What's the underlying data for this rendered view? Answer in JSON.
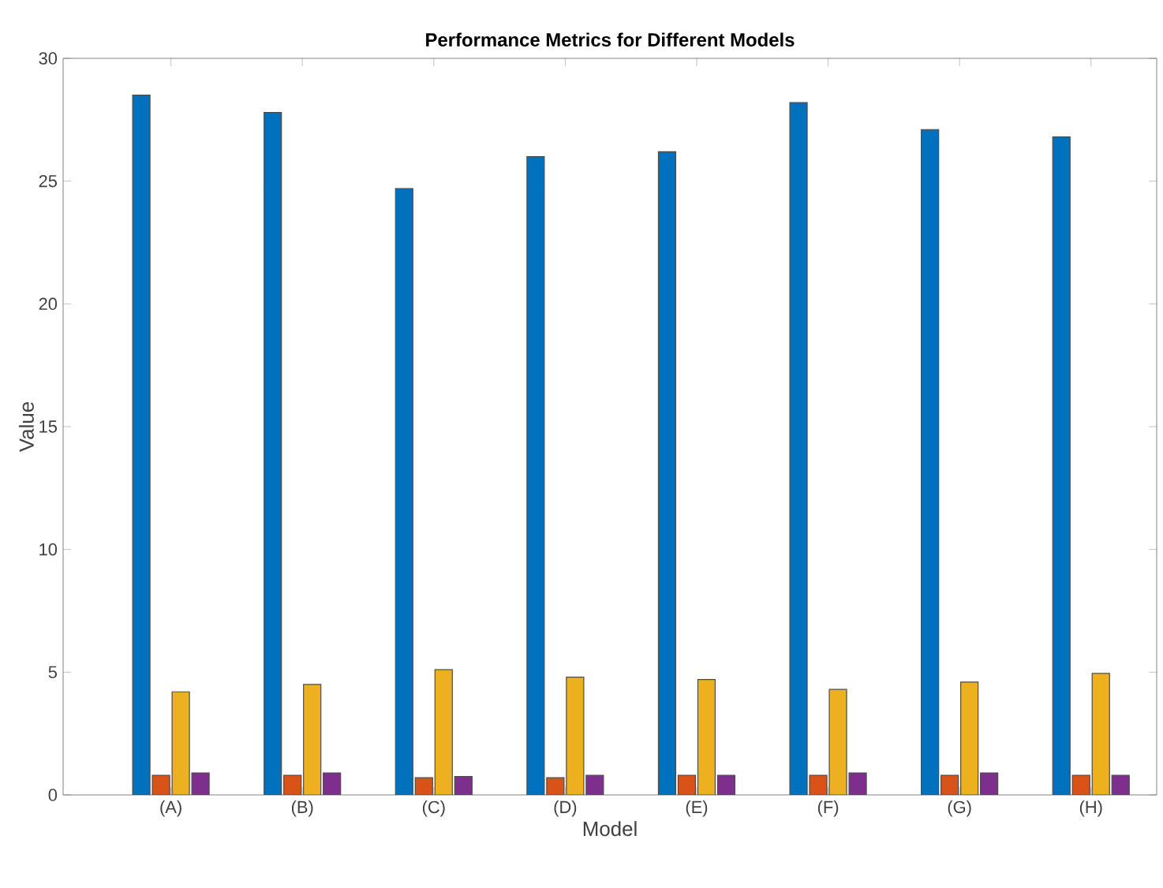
{
  "chart_data": {
    "type": "bar",
    "title": "Performance Metrics for Different Models",
    "xlabel": "Model",
    "ylabel": "Value",
    "categories": [
      "(A)",
      "(B)",
      "(C)",
      "(D)",
      "(E)",
      "(F)",
      "(G)",
      "(H)"
    ],
    "series": [
      {
        "color": "#0072bd",
        "values": [
          28.5,
          27.8,
          24.7,
          26.0,
          26.2,
          28.2,
          27.1,
          26.8
        ]
      },
      {
        "color": "#d95319",
        "values": [
          0.8,
          0.8,
          0.7,
          0.7,
          0.8,
          0.8,
          0.8,
          0.8
        ]
      },
      {
        "color": "#edb120",
        "values": [
          4.2,
          4.5,
          5.1,
          4.8,
          4.7,
          4.3,
          4.6,
          4.95
        ]
      },
      {
        "color": "#7e2f8e",
        "values": [
          0.9,
          0.9,
          0.75,
          0.8,
          0.8,
          0.9,
          0.9,
          0.8
        ]
      }
    ],
    "ylim": [
      0,
      30
    ],
    "yticks": [
      0,
      5,
      10,
      15,
      20,
      25,
      30
    ],
    "grid": false
  }
}
